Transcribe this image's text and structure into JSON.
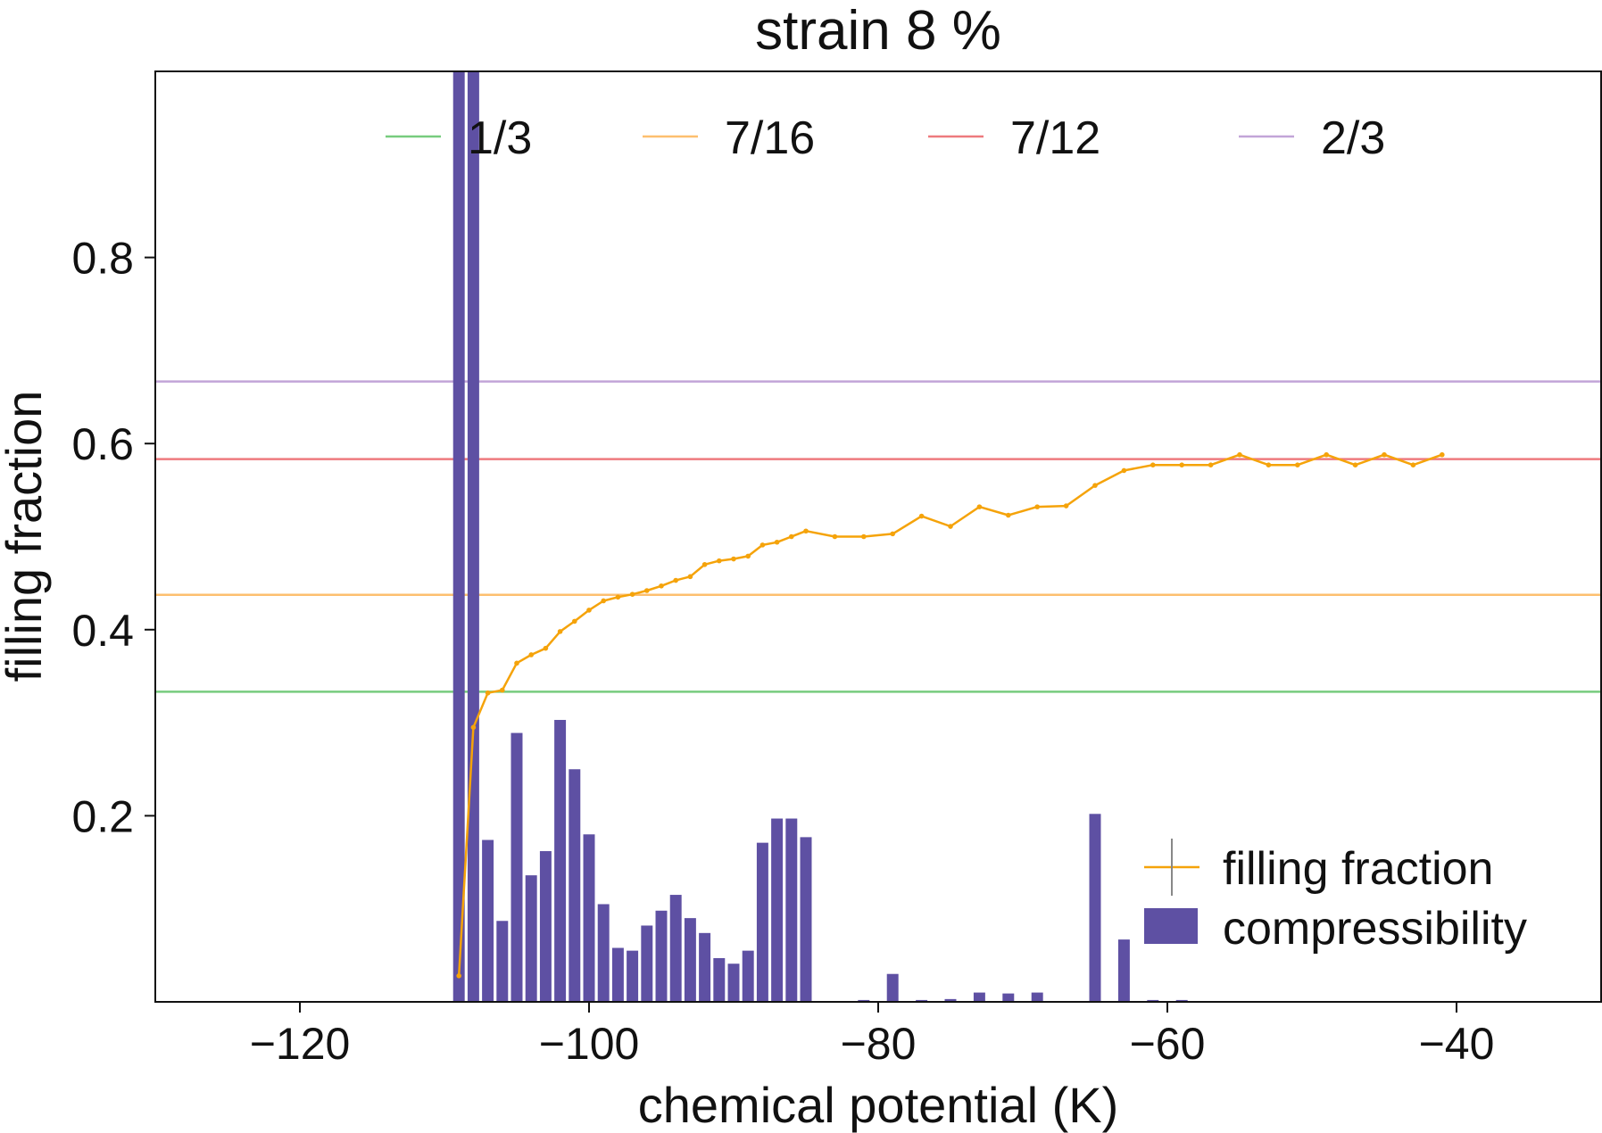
{
  "chart_data": {
    "type": "bar+line",
    "title": "strain 8 %",
    "xlabel": "chemical potential (K)",
    "ylabel": "filling fraction",
    "xlim": [
      -130,
      -30
    ],
    "ylim": [
      0,
      1.0
    ],
    "x_ticks": [
      -120,
      -100,
      -80,
      -60,
      -40
    ],
    "x_tick_labels": [
      "−120",
      "−100",
      "−80",
      "−60",
      "−40"
    ],
    "y_ticks": [
      0.2,
      0.4,
      0.6,
      0.8
    ],
    "y_tick_labels": [
      "0.2",
      "0.4",
      "0.6",
      "0.8"
    ],
    "reference_lines": [
      {
        "label": "1/3",
        "value": 0.3333,
        "color": "#77cc7e"
      },
      {
        "label": "7/16",
        "value": 0.4375,
        "color": "#fdbf6f"
      },
      {
        "label": "7/12",
        "value": 0.5833,
        "color": "#ee7a7e"
      },
      {
        "label": "2/3",
        "value": 0.6667,
        "color": "#c2a5d8"
      }
    ],
    "compressibility": {
      "name": "compressibility",
      "color": "#5e50a3",
      "bar_width": 0.8,
      "x": [
        -109,
        -108,
        -107,
        -106,
        -105,
        -104,
        -103,
        -102,
        -101,
        -100,
        -99,
        -98,
        -97,
        -96,
        -95,
        -94,
        -93,
        -92,
        -91,
        -90,
        -89,
        -88,
        -87,
        -86,
        -85,
        -81,
        -79,
        -77,
        -75,
        -73,
        -71,
        -69,
        -65,
        -63,
        -61,
        -59
      ],
      "values": [
        1.0,
        1.0,
        0.174,
        0.087,
        0.289,
        0.136,
        0.162,
        0.303,
        0.25,
        0.18,
        0.105,
        0.058,
        0.055,
        0.082,
        0.098,
        0.115,
        0.09,
        0.074,
        0.047,
        0.041,
        0.055,
        0.171,
        0.197,
        0.197,
        0.177,
        0.002,
        0.03,
        0.002,
        0.003,
        0.01,
        0.009,
        0.01,
        0.202,
        0.067,
        0.002,
        0.002
      ]
    },
    "filling_fraction": {
      "name": "filling fraction",
      "color": "#f5a30a",
      "x": [
        -109,
        -108,
        -107,
        -106,
        -105,
        -104,
        -103,
        -102,
        -101,
        -100,
        -99,
        -98,
        -97,
        -96,
        -95,
        -94,
        -93,
        -92,
        -91,
        -90,
        -89,
        -88,
        -87,
        -86,
        -85,
        -83,
        -81,
        -79,
        -77,
        -75,
        -73,
        -71,
        -69,
        -67,
        -65,
        -63,
        -61,
        -59,
        -57,
        -55,
        -53,
        -51,
        -49,
        -47,
        -45,
        -43,
        -41
      ],
      "values": [
        0.028,
        0.295,
        0.332,
        0.335,
        0.364,
        0.373,
        0.38,
        0.398,
        0.409,
        0.421,
        0.431,
        0.435,
        0.438,
        0.442,
        0.447,
        0.453,
        0.457,
        0.47,
        0.474,
        0.476,
        0.479,
        0.491,
        0.494,
        0.5,
        0.506,
        0.5,
        0.5,
        0.503,
        0.522,
        0.511,
        0.532,
        0.523,
        0.532,
        0.533,
        0.555,
        0.571,
        0.577,
        0.577,
        0.577,
        0.588,
        0.577,
        0.577,
        0.588,
        0.577,
        0.588,
        0.577,
        0.588
      ]
    },
    "legend_lower": [
      {
        "label": "filling fraction",
        "swatch": "line"
      },
      {
        "label": "compressibility",
        "swatch": "bar"
      }
    ],
    "legend_top_placement": "top-center",
    "legend_lower_placement": "bottom-right"
  }
}
